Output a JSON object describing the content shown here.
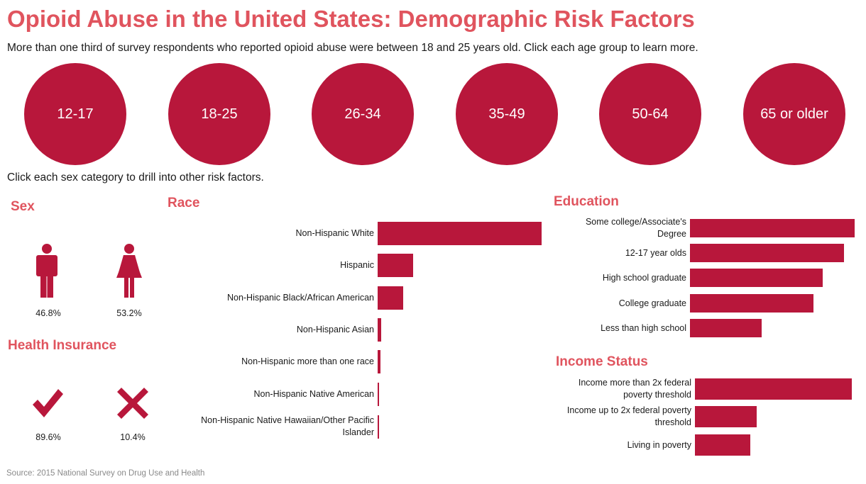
{
  "title": "Opioid Abuse in the United States: Demographic Risk Factors",
  "subtitle": "More than one third of survey respondents who reported opioid abuse were between 18 and 25 years old. Click each age group to learn more.",
  "age_groups": [
    "12-17",
    "18-25",
    "26-34",
    "35-49",
    "50-64",
    "65 or older"
  ],
  "sex_instruction": "Click each sex category to drill into other risk factors.",
  "source": "Source: 2015 National Survey on Drug Use and Health",
  "colors": {
    "title": "#e0545e",
    "bar": "#b8173b",
    "circle": "#b8173b"
  },
  "sex": {
    "title": "Sex",
    "male_icon": "male-icon",
    "female_icon": "female-icon",
    "male_pct": "46.8%",
    "female_pct": "53.2%"
  },
  "insurance": {
    "title": "Health Insurance",
    "insured_icon": "checkmark-icon",
    "uninsured_icon": "x-icon",
    "insured_pct": "89.6%",
    "uninsured_pct": "10.4%"
  },
  "chart_data": [
    {
      "type": "bar",
      "orientation": "horizontal",
      "title": "Race",
      "categories": [
        "Non-Hispanic White",
        "Hispanic",
        "Non-Hispanic Black/African American",
        "Non-Hispanic Asian",
        "Non-Hispanic more than one race",
        "Non-Hispanic Native American",
        "Non-Hispanic Native Hawaiian/Other Pacific Islander"
      ],
      "values": [
        70.5,
        15.4,
        10.9,
        1.6,
        1.3,
        0.4,
        0.1
      ]
    },
    {
      "type": "bar",
      "orientation": "horizontal",
      "title": "Education",
      "categories": [
        "Some college/Associate's Degree",
        "12-17 year olds",
        "High school graduate",
        "College graduate",
        "Less than high school"
      ],
      "values": [
        30.6,
        28.6,
        24.7,
        23.0,
        13.3
      ]
    },
    {
      "type": "bar",
      "orientation": "horizontal",
      "title": "Income Status",
      "categories": [
        "Income more than 2x federal poverty threshold",
        "Income up to 2x federal poverty threshold",
        "Living in poverty"
      ],
      "values": [
        53.5,
        21.0,
        19.0
      ]
    }
  ]
}
